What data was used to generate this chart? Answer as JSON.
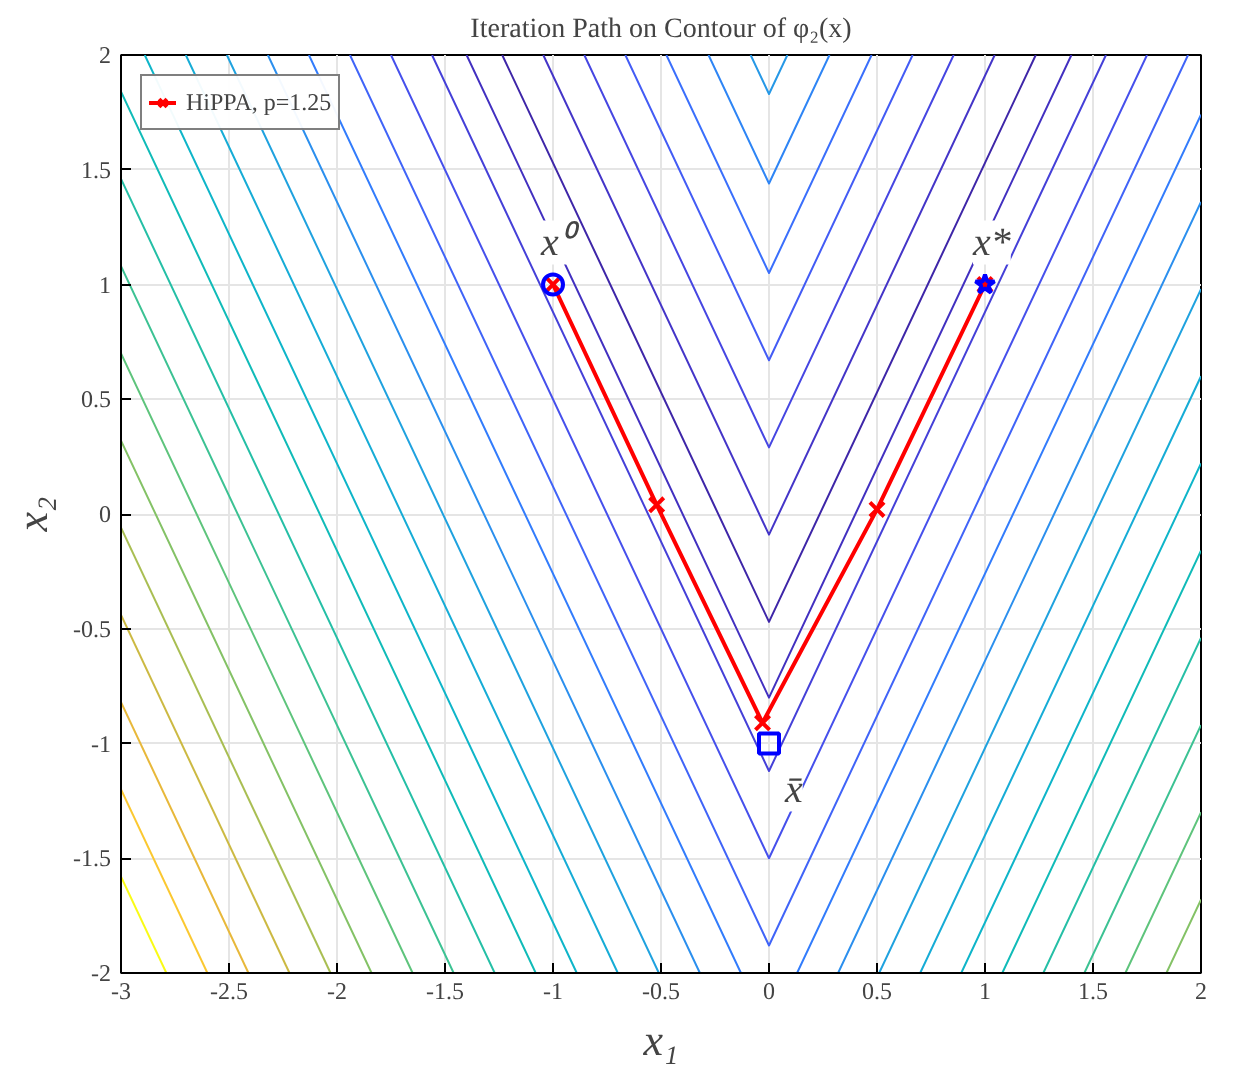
{
  "chart_data": {
    "type": "line",
    "title": "Iteration Path on Contour of φ₂(x)",
    "xlabel": "x₁",
    "ylabel": "x₂",
    "xlim": [
      -3,
      2
    ],
    "ylim": [
      -2,
      2
    ],
    "xticks": [
      -3,
      -2.5,
      -2,
      -1.5,
      -1,
      -0.5,
      0,
      0.5,
      1,
      1.5,
      2
    ],
    "yticks": [
      -2,
      -1.5,
      -1,
      -0.5,
      0,
      0.5,
      1,
      1.5,
      2
    ],
    "grid": true,
    "legend": "top left",
    "marker": "none",
    "line_style": "solid",
    "series": [
      {
        "color": "#2698e6",
        "x": [
          -0.085,
          0,
          0.085
        ],
        "values": [
          2,
          1.83,
          2
        ]
      },
      {
        "color": "#2e85f5",
        "x": [
          -0.28,
          0,
          0.28
        ],
        "values": [
          2,
          1.44,
          2
        ]
      },
      {
        "color": "#3a6ffc",
        "x": [
          -0.475,
          0,
          0.475
        ],
        "values": [
          2,
          1.05,
          2
        ]
      },
      {
        "color": "#435cf5",
        "x": [
          -0.665,
          0,
          0.665
        ],
        "values": [
          2,
          0.67,
          2
        ]
      },
      {
        "color": "#4646e2",
        "x": [
          -0.855,
          0,
          0.855
        ],
        "values": [
          2,
          0.29,
          2
        ]
      },
      {
        "color": "#4435c8",
        "x": [
          -1.045,
          0,
          1.045
        ],
        "values": [
          2,
          -0.09,
          2
        ]
      },
      {
        "color": "#3e26a8",
        "x": [
          -1.235,
          0,
          1.235
        ],
        "values": [
          2,
          -0.47,
          2
        ]
      },
      {
        "color": "#4230c0",
        "x": [
          -1.4,
          0,
          1.4
        ],
        "values": [
          2,
          -0.8,
          2
        ]
      },
      {
        "color": "#4540d8",
        "x": [
          -1.56,
          0,
          1.56
        ],
        "values": [
          2,
          -1.12,
          2
        ]
      },
      {
        "color": "#4650ec",
        "x": [
          -1.75,
          0,
          1.75
        ],
        "values": [
          2,
          -1.5,
          2
        ]
      },
      {
        "color": "#4064f8",
        "x": [
          -1.94,
          0,
          1.94
        ],
        "values": [
          2,
          -1.88,
          2
        ]
      },
      {
        "color": "#327cfc",
        "x": [
          -2.13,
          -0.13,
          0,
          0.13,
          2
        ],
        "values": [
          2,
          -2,
          null,
          -2,
          1.74
        ]
      },
      {
        "color": "#2b8fee",
        "x": [
          -2.32,
          -0.32,
          0,
          0.32,
          2
        ],
        "values": [
          2,
          -2,
          null,
          -2,
          1.36
        ]
      },
      {
        "color": "#1fa2df",
        "x": [
          -2.51,
          -0.51,
          0,
          0.51,
          2
        ],
        "values": [
          2,
          -2,
          null,
          -2,
          0.98
        ]
      },
      {
        "color": "#16acd6",
        "x": [
          -2.7,
          -0.7,
          0,
          0.7,
          2
        ],
        "values": [
          2,
          -2,
          null,
          -2,
          0.6
        ]
      },
      {
        "color": "#0eb5c9",
        "x": [
          -2.89,
          -0.89,
          0,
          0.89,
          2
        ],
        "values": [
          2,
          -2,
          null,
          -2,
          0.22
        ]
      },
      {
        "color": "#10bbb8",
        "x": [
          -3,
          -1.08,
          0,
          1.08,
          2
        ],
        "values": [
          1.84,
          -2,
          null,
          -2,
          -0.16
        ]
      },
      {
        "color": "#25bfa6",
        "x": [
          -3,
          -1.27,
          0,
          1.27,
          2
        ],
        "values": [
          1.46,
          -2,
          null,
          -2,
          -0.54
        ]
      },
      {
        "color": "#3cc293",
        "x": [
          -3,
          -1.46,
          0,
          1.46,
          2
        ],
        "values": [
          1.08,
          -2,
          null,
          -2,
          -0.92
        ]
      },
      {
        "color": "#5ec47c",
        "x": [
          -3,
          -1.65,
          0,
          1.65,
          2
        ],
        "values": [
          0.7,
          -2,
          null,
          -2,
          -1.3
        ]
      },
      {
        "color": "#84c266",
        "x": [
          -3,
          -1.84,
          0,
          1.84,
          2
        ],
        "values": [
          0.32,
          -2,
          null,
          -2,
          -1.68
        ]
      },
      {
        "color": "#a9be52",
        "x": [
          -3,
          -2.03
        ],
        "values": [
          -0.06,
          -2
        ]
      },
      {
        "color": "#ccb942",
        "x": [
          -3,
          -2.22
        ],
        "values": [
          -0.44,
          -2
        ]
      },
      {
        "color": "#e8b83a",
        "x": [
          -3,
          -2.41
        ],
        "values": [
          -0.82,
          -2
        ]
      },
      {
        "color": "#fbc830",
        "x": [
          -3,
          -2.6
        ],
        "values": [
          -1.2,
          -2
        ]
      },
      {
        "color": "#f9fb15",
        "x": [
          -3,
          -2.79
        ],
        "values": [
          -1.58,
          -2
        ]
      },
      {
        "name": "HiPPA, p=1.25",
        "color": "#ff0000",
        "marker": "cross",
        "x": [
          -1,
          -0.52,
          -0.03,
          0.5,
          1
        ],
        "values": [
          1,
          0.04,
          -0.91,
          0.02,
          1
        ]
      },
      {
        "type": "scatter",
        "color": "#0000ff",
        "marker": "circle",
        "x": [
          -1
        ],
        "values": [
          1
        ]
      },
      {
        "type": "scatter",
        "color": "#0000ff",
        "marker": "square",
        "x": [
          0
        ],
        "values": [
          -1
        ]
      },
      {
        "type": "scatter",
        "color": "#0000ff",
        "marker": "star",
        "x": [
          1
        ],
        "values": [
          1
        ]
      }
    ],
    "annotations": [
      {
        "text": "x⁰",
        "x": -1,
        "y": 1
      },
      {
        "text": "x*",
        "x": 1,
        "y": 1
      },
      {
        "text": "x̄",
        "x": 0,
        "y": -1
      }
    ]
  }
}
